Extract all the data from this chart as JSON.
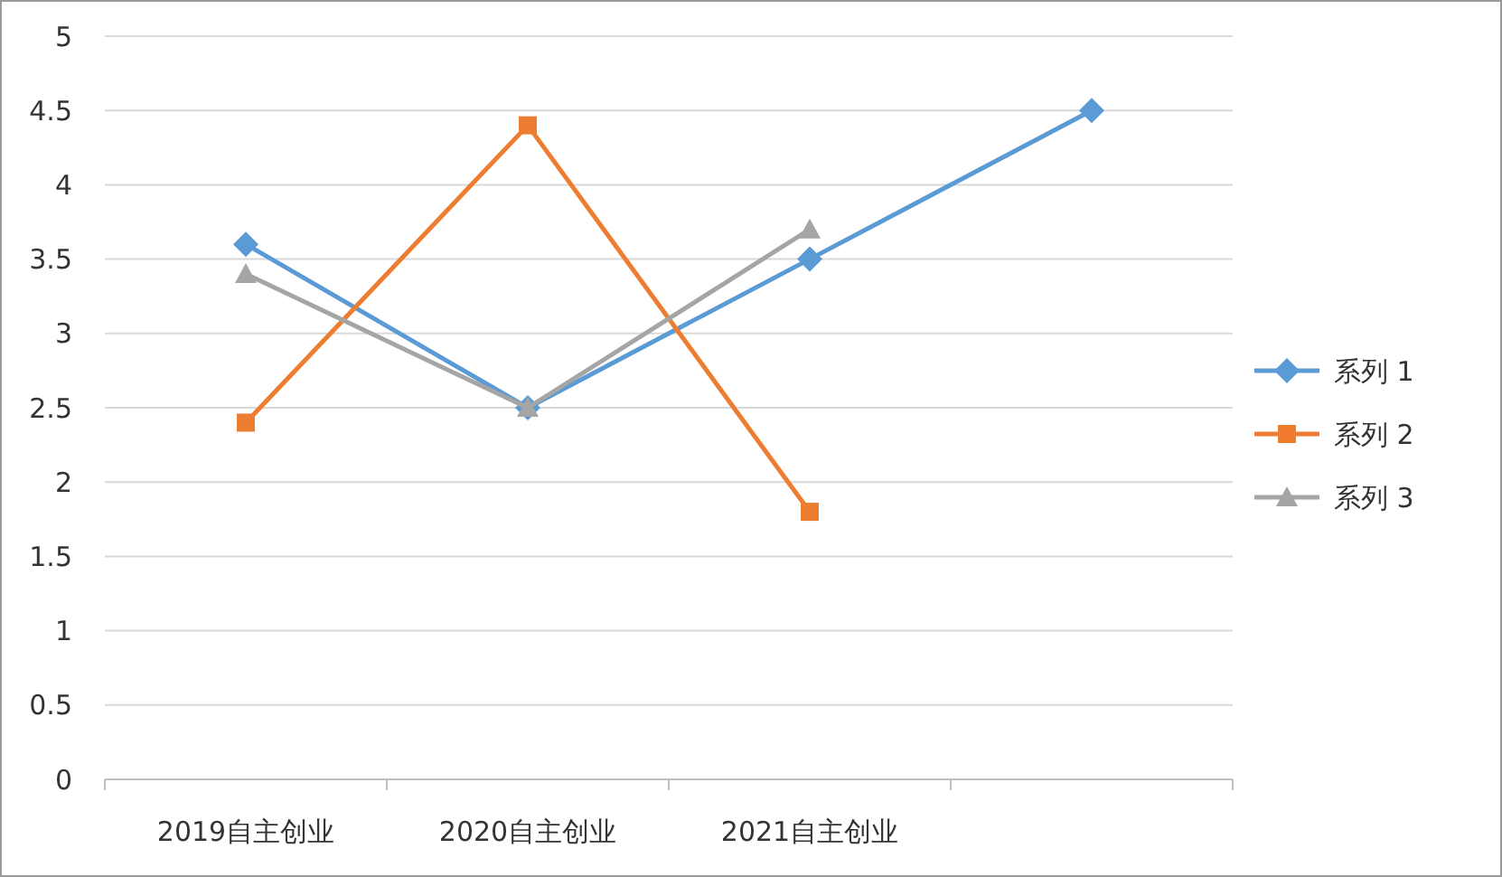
{
  "chart_data": {
    "type": "line",
    "categories": [
      "2019自主创业",
      "2020自主创业",
      "2021自主创业",
      null
    ],
    "series": [
      {
        "name": "系列 1",
        "color": "#5b9bd5",
        "values": [
          3.6,
          2.5,
          3.5,
          4.5
        ],
        "marker": "diamond"
      },
      {
        "name": "系列 2",
        "color": "#ed7d31",
        "values": [
          2.4,
          4.4,
          1.8,
          null
        ],
        "marker": "square"
      },
      {
        "name": "系列 3",
        "color": "#a5a5a5",
        "values": [
          3.4,
          2.5,
          3.7,
          null
        ],
        "marker": "triangle"
      }
    ],
    "ylim": [
      0,
      5
    ],
    "yticks": [
      0,
      0.5,
      1,
      1.5,
      2,
      2.5,
      3,
      3.5,
      4,
      4.5,
      5
    ],
    "grid": "y",
    "legend": "right",
    "line_style": "solid"
  }
}
